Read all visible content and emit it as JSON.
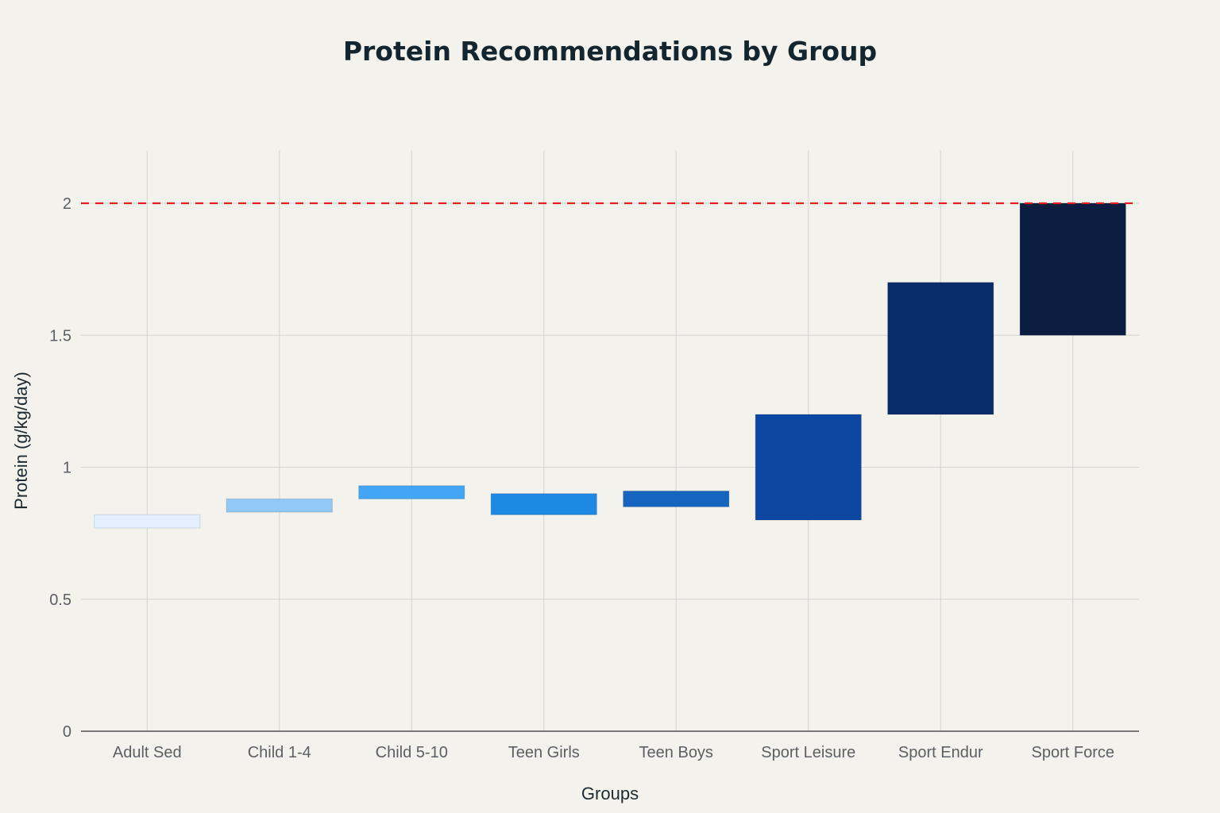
{
  "chart_data": {
    "type": "bar",
    "subtype": "floating-range",
    "title": "Protein Recommendations by Group",
    "xlabel": "Groups",
    "ylabel": "Protein (g/kg/day)",
    "ylim": [
      0,
      2.2
    ],
    "yticks": [
      0,
      0.5,
      1,
      1.5,
      2
    ],
    "ytick_labels": [
      "0",
      "0.5",
      "1",
      "1.5",
      "2"
    ],
    "grid": true,
    "categories": [
      "Adult Sed",
      "Child 1-4",
      "Child 5-10",
      "Teen Girls",
      "Teen Boys",
      "Sport Leisure",
      "Sport Endur",
      "Sport Force"
    ],
    "low": [
      0.77,
      0.83,
      0.88,
      0.82,
      0.85,
      0.8,
      1.2,
      1.5
    ],
    "high": [
      0.82,
      0.88,
      0.93,
      0.9,
      0.91,
      1.2,
      1.7,
      2.0
    ],
    "colors": [
      "#e3effc",
      "#90c8f6",
      "#42a5f5",
      "#1e88e5",
      "#1565c0",
      "#0d47a1",
      "#0a2c6a",
      "#0a1c3f"
    ],
    "reference_line": {
      "y": 2.0,
      "color": "#e02020",
      "style": "dashed"
    }
  }
}
